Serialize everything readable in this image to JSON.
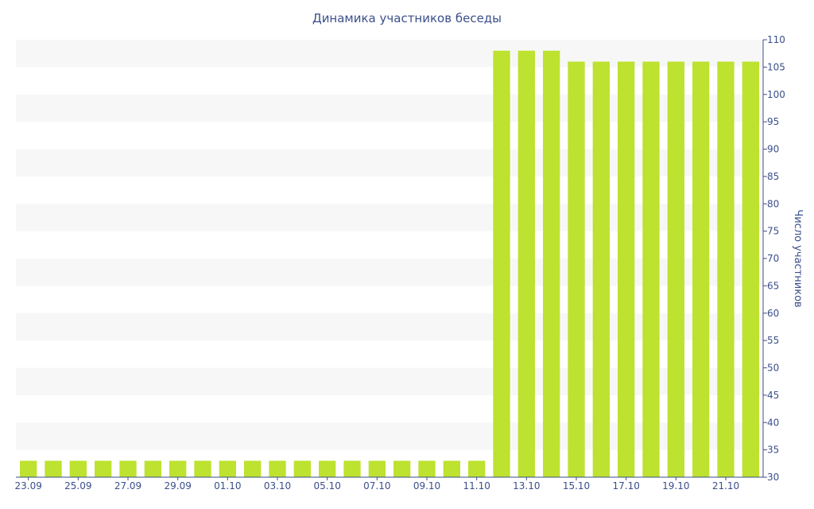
{
  "chart_data": {
    "type": "bar",
    "title": "Динамика участников беседы",
    "xlabel": "",
    "ylabel": "Число участников",
    "ylim": [
      30,
      110
    ],
    "yticks": [
      30,
      35,
      40,
      45,
      50,
      55,
      60,
      65,
      70,
      75,
      80,
      85,
      90,
      95,
      100,
      105,
      110
    ],
    "y_axis_side": "right",
    "grid": "alternating horizontal bands",
    "categories": [
      "23.09",
      "24.09",
      "25.09",
      "26.09",
      "27.09",
      "28.09",
      "29.09",
      "30.09",
      "01.10",
      "02.10",
      "03.10",
      "04.10",
      "05.10",
      "06.10",
      "07.10",
      "08.10",
      "09.10",
      "10.10",
      "11.10",
      "12.10",
      "13.10",
      "14.10",
      "15.10",
      "16.10",
      "17.10",
      "18.10",
      "19.10",
      "20.10",
      "21.10",
      "22.10"
    ],
    "x_tick_labels": [
      "23.09",
      "25.09",
      "27.09",
      "29.09",
      "01.10",
      "03.10",
      "05.10",
      "07.10",
      "09.10",
      "11.10",
      "13.10",
      "15.10",
      "17.10",
      "19.10",
      "21.10"
    ],
    "values": [
      33,
      33,
      33,
      33,
      33,
      33,
      33,
      33,
      33,
      33,
      33,
      33,
      33,
      33,
      33,
      33,
      33,
      33,
      33,
      108,
      108,
      108,
      106,
      106,
      106,
      106,
      106,
      106,
      106,
      106
    ],
    "colors": {
      "bar": "#bde22f",
      "text": "#3b4f8a",
      "band": "#f7f7f7",
      "axis": "#3b4f8a"
    }
  }
}
